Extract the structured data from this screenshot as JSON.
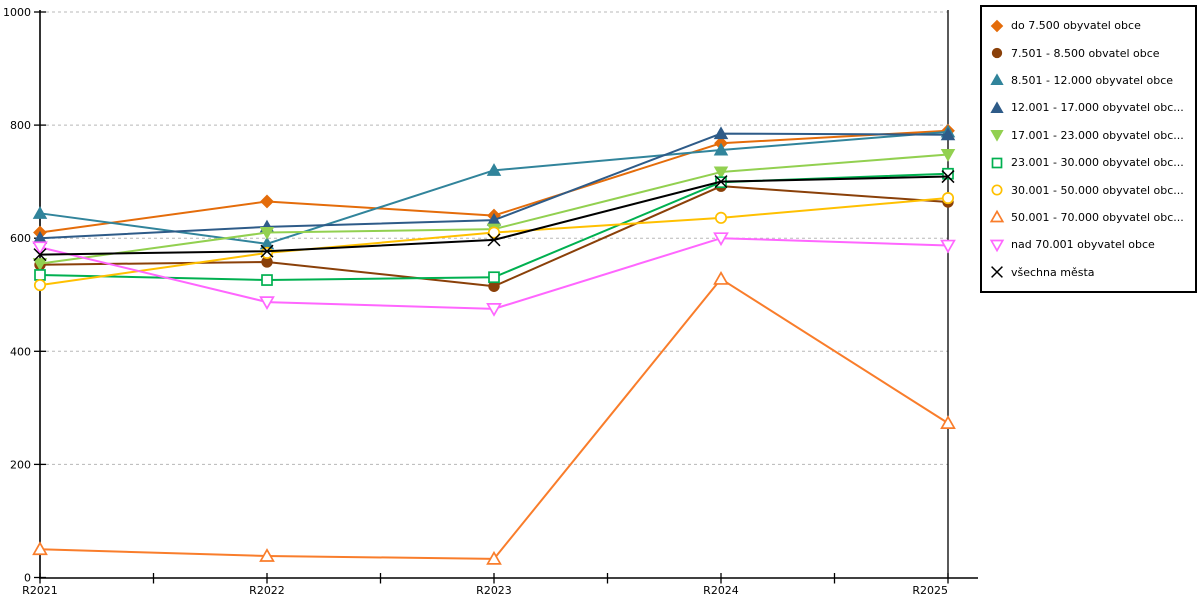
{
  "chart_data": {
    "type": "line",
    "title": "",
    "categories": [
      "R2021",
      "R2022",
      "R2023",
      "R2024",
      "R2025"
    ],
    "y_axis": {
      "min": 0,
      "max": 1000,
      "tick_step": 200,
      "ticks": [
        0,
        200,
        400,
        600,
        800,
        1000
      ]
    },
    "grid": "horizontal-dashed",
    "legend_position": "top-right",
    "series": [
      {
        "label": "do 7.500 obyvatel obce",
        "marker": "diamond",
        "marker_fill": "filled",
        "color": "#E46C0A",
        "values": [
          610,
          665,
          640,
          768,
          790
        ]
      },
      {
        "label": "7.501 - 8.500 obvatel obce",
        "marker": "circle",
        "marker_fill": "filled",
        "color": "#8A4009",
        "values": [
          553,
          558,
          515,
          692,
          664
        ]
      },
      {
        "label": "8.501 - 12.000 obyvatel obce",
        "marker": "triangle-up",
        "marker_fill": "filled",
        "color": "#31849B",
        "values": [
          644,
          590,
          720,
          756,
          788
        ]
      },
      {
        "label": "12.001 - 17.000 obyvatel obc...",
        "marker": "triangle-up",
        "marker_fill": "filled",
        "color": "#2E5B88",
        "values": [
          600,
          620,
          632,
          785,
          783
        ]
      },
      {
        "label": "17.001 - 23.000 obyvatel obc...",
        "marker": "triangle-down",
        "marker_fill": "filled",
        "color": "#92D050",
        "values": [
          555,
          610,
          616,
          717,
          748
        ]
      },
      {
        "label": "23.001 - 30.000 obyvatel obc...",
        "marker": "square",
        "marker_fill": "open",
        "color": "#00B050",
        "values": [
          535,
          526,
          531,
          699,
          714
        ]
      },
      {
        "label": "30.001 - 50.000 obyvatel obc...",
        "marker": "circle",
        "marker_fill": "open",
        "color": "#FFC000",
        "values": [
          517,
          574,
          610,
          636,
          671
        ]
      },
      {
        "label": "50.001 - 70.000 obyvatel obc...",
        "marker": "triangle-up",
        "marker_fill": "open",
        "color": "#F97D2B",
        "values": [
          50,
          38,
          33,
          528,
          273
        ]
      },
      {
        "label": "nad 70.001 obyvatel obce",
        "marker": "triangle-down",
        "marker_fill": "open",
        "color": "#FF66FF",
        "values": [
          584,
          487,
          475,
          600,
          587
        ]
      },
      {
        "label": "všechna města",
        "marker": "x-cross",
        "marker_fill": "line",
        "color": "#000000",
        "values": [
          571,
          577,
          597,
          700,
          709
        ]
      }
    ]
  }
}
